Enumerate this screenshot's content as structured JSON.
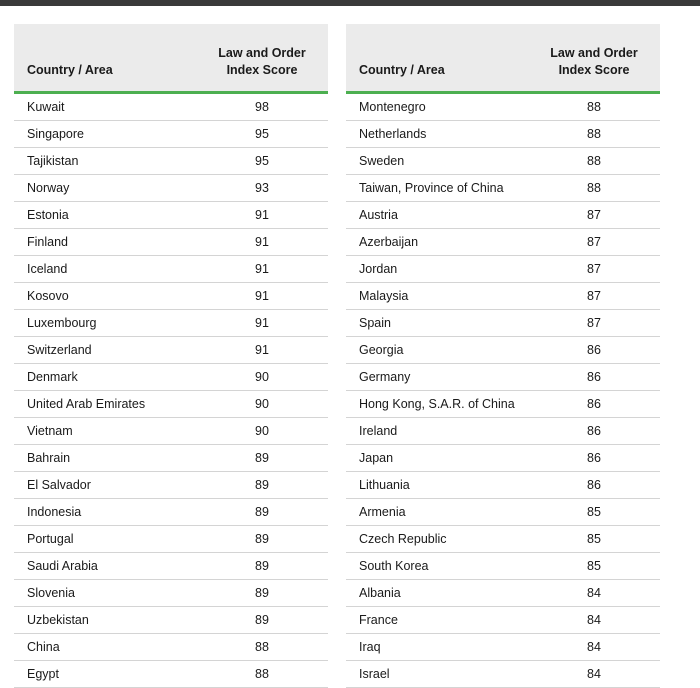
{
  "tables": [
    {
      "headers": [
        "Country / Area",
        "Law and Order Index Score"
      ],
      "rows": [
        [
          "Kuwait",
          98
        ],
        [
          "Singapore",
          95
        ],
        [
          "Tajikistan",
          95
        ],
        [
          "Norway",
          93
        ],
        [
          "Estonia",
          91
        ],
        [
          "Finland",
          91
        ],
        [
          "Iceland",
          91
        ],
        [
          "Kosovo",
          91
        ],
        [
          "Luxembourg",
          91
        ],
        [
          "Switzerland",
          91
        ],
        [
          "Denmark",
          90
        ],
        [
          "United Arab Emirates",
          90
        ],
        [
          "Vietnam",
          90
        ],
        [
          "Bahrain",
          89
        ],
        [
          "El Salvador",
          89
        ],
        [
          "Indonesia",
          89
        ],
        [
          "Portugal",
          89
        ],
        [
          "Saudi Arabia",
          89
        ],
        [
          "Slovenia",
          89
        ],
        [
          "Uzbekistan",
          89
        ],
        [
          "China",
          88
        ],
        [
          "Egypt",
          88
        ]
      ]
    },
    {
      "headers": [
        "Country / Area",
        "Law and Order Index Score"
      ],
      "rows": [
        [
          "Montenegro",
          88
        ],
        [
          "Netherlands",
          88
        ],
        [
          "Sweden",
          88
        ],
        [
          "Taiwan, Province of China",
          88
        ],
        [
          "Austria",
          87
        ],
        [
          "Azerbaijan",
          87
        ],
        [
          "Jordan",
          87
        ],
        [
          "Malaysia",
          87
        ],
        [
          "Spain",
          87
        ],
        [
          "Georgia",
          86
        ],
        [
          "Germany",
          86
        ],
        [
          "Hong Kong, S.A.R. of China",
          86
        ],
        [
          "Ireland",
          86
        ],
        [
          "Japan",
          86
        ],
        [
          "Lithuania",
          86
        ],
        [
          "Armenia",
          85
        ],
        [
          "Czech Republic",
          85
        ],
        [
          "South Korea",
          85
        ],
        [
          "Albania",
          84
        ],
        [
          "France",
          84
        ],
        [
          "Iraq",
          84
        ],
        [
          "Israel",
          84
        ]
      ]
    }
  ]
}
